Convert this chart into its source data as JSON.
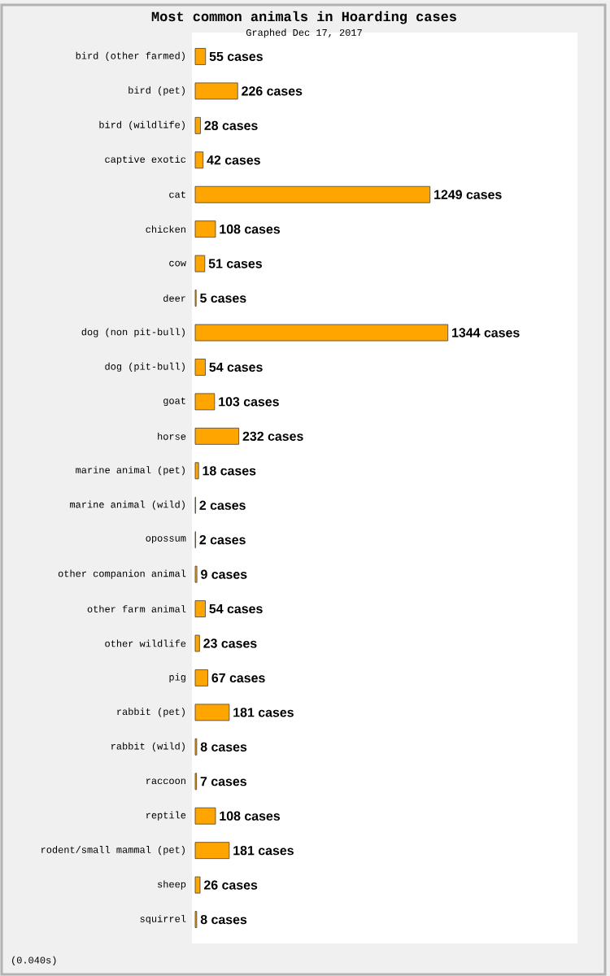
{
  "chart_data": {
    "type": "bar",
    "orientation": "horizontal",
    "title": "Most common animals in Hoarding cases",
    "subtitle": "Graphed Dec 17, 2017",
    "categories": [
      "bird (other farmed)",
      "bird (pet)",
      "bird (wildlife)",
      "captive exotic",
      "cat",
      "chicken",
      "cow",
      "deer",
      "dog (non pit-bull)",
      "dog (pit-bull)",
      "goat",
      "horse",
      "marine animal (pet)",
      "marine animal (wild)",
      "opossum",
      "other companion animal",
      "other farm animal",
      "other wildlife",
      "pig",
      "rabbit (pet)",
      "rabbit (wild)",
      "raccoon",
      "reptile",
      "rodent/small mammal (pet)",
      "sheep",
      "squirrel"
    ],
    "values": [
      55,
      226,
      28,
      42,
      1249,
      108,
      51,
      5,
      1344,
      54,
      103,
      232,
      18,
      2,
      2,
      9,
      54,
      23,
      67,
      181,
      8,
      7,
      108,
      181,
      26,
      8
    ],
    "value_labels": [
      "55 cases",
      "226 cases",
      "28 cases",
      "42 cases",
      "1249 cases",
      "108 cases",
      "51 cases",
      "5 cases",
      "1344 cases",
      "54 cases",
      "103 cases",
      "232 cases",
      "18 cases",
      "2 cases",
      "2 cases",
      "9 cases",
      "54 cases",
      "23 cases",
      "67 cases",
      "181 cases",
      "8 cases",
      "7 cases",
      "108 cases",
      "181 cases",
      "26 cases",
      "8 cases"
    ],
    "color": "#ffa500",
    "annotations": [
      "(0.040s)"
    ]
  }
}
